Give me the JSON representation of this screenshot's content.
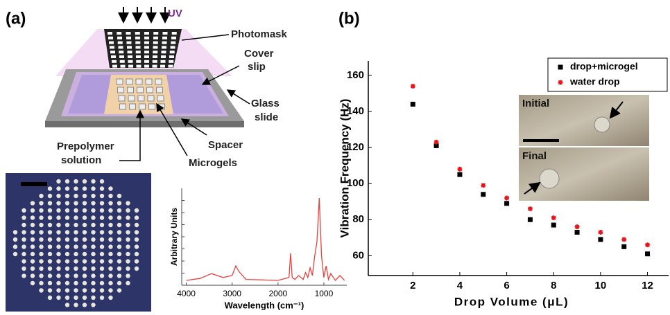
{
  "panels": [
    "(a)",
    "(b)"
  ],
  "diagram": {
    "uv": "UV",
    "photomask": "Photomask",
    "cover_slip": [
      "Cover",
      "slip"
    ],
    "glass_slide": [
      "Glass",
      "slide"
    ],
    "spacer": "Spacer",
    "microgels": "Microgels",
    "prepolymer": [
      "Prepolymer",
      "solution"
    ]
  },
  "chart_data": [
    {
      "type": "line",
      "ylabel": "Arbitrary Units",
      "xlabel": "Wavelength (cm⁻¹)",
      "x": [
        4000,
        3700,
        3450,
        3200,
        3000,
        2920,
        2850,
        2700,
        2000,
        1760,
        1725,
        1690,
        1630,
        1550,
        1450,
        1400,
        1350,
        1300,
        1250,
        1200,
        1150,
        1100,
        1050,
        1000,
        950,
        900,
        850,
        750,
        650,
        550
      ],
      "values": [
        0.05,
        0.07,
        0.12,
        0.08,
        0.1,
        0.2,
        0.14,
        0.06,
        0.05,
        0.08,
        0.33,
        0.08,
        0.06,
        0.1,
        0.06,
        0.13,
        0.08,
        0.18,
        0.1,
        0.3,
        0.45,
        0.9,
        0.3,
        0.08,
        0.2,
        0.06,
        0.12,
        0.05,
        0.1,
        0.05
      ],
      "color": "#e8403c",
      "xlim": [
        4100,
        500
      ],
      "xticks": [
        4000,
        3000,
        2000,
        1000
      ],
      "ylim": [
        0,
        1
      ]
    },
    {
      "type": "scatter",
      "xlabel": "Drop Volume (μL)",
      "ylabel": "Vibration Frequency (Hz)",
      "x": [
        2,
        3,
        4,
        5,
        6,
        7,
        8,
        9,
        10,
        11,
        12
      ],
      "series": [
        {
          "name": "drop+microgel",
          "color": "#000000",
          "marker": "square",
          "values": [
            144,
            121,
            105,
            94,
            89,
            80,
            77,
            73,
            69,
            65,
            61
          ]
        },
        {
          "name": "water drop",
          "color": "#e8141c",
          "marker": "star",
          "values": [
            154,
            123,
            108,
            99,
            92,
            86,
            81,
            76,
            73,
            69,
            66
          ]
        }
      ],
      "xlim": [
        0.1,
        12.9
      ],
      "ylim": [
        49,
        168
      ],
      "xticks": [
        2,
        4,
        6,
        8,
        10,
        12
      ],
      "yticks": [
        60,
        80,
        100,
        120,
        140,
        160
      ],
      "legend": "upper right",
      "insets": [
        "Initial",
        "Final"
      ]
    }
  ]
}
